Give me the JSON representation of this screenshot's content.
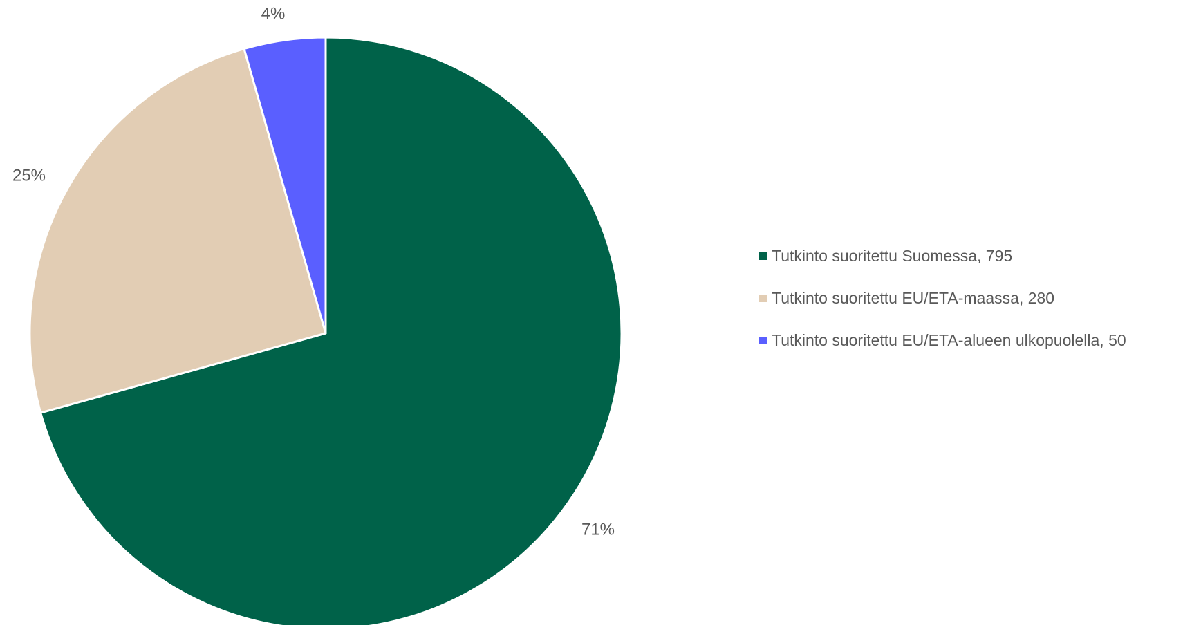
{
  "chart_data": {
    "type": "pie",
    "title": "",
    "slices": [
      {
        "label": "Tutkinto suoritettu Suomessa, 795",
        "value": 795,
        "percent_label": "71%",
        "color": "#006249"
      },
      {
        "label": "Tutkinto suoritettu EU/ETA-maassa, 280",
        "value": 280,
        "percent_label": "25%",
        "color": "#e2cdb4"
      },
      {
        "label": "Tutkinto suoritettu EU/ETA-alueen ulkopuolella, 50",
        "value": 50,
        "percent_label": "4%",
        "color": "#5a5fff"
      }
    ],
    "start_angle_deg": 0,
    "direction": "clockwise",
    "slice_border_color": "#ffffff",
    "legend_position": "right"
  }
}
